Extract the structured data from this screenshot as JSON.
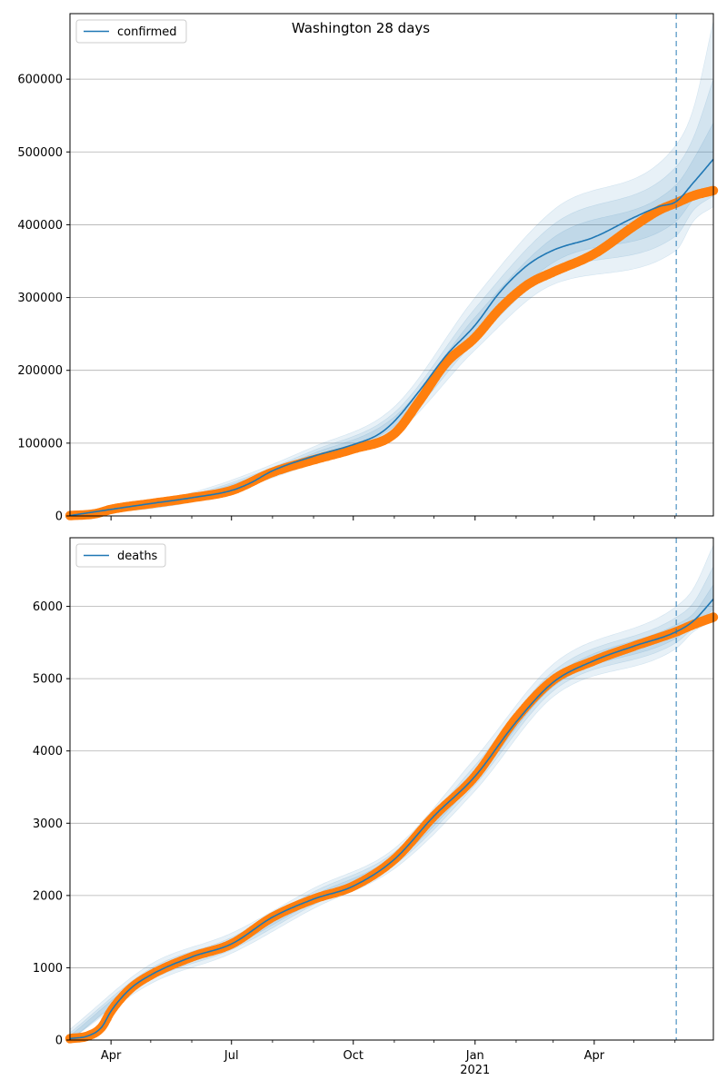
{
  "title": "Washington 28 days",
  "x_axis": {
    "start": "2020-03-01",
    "end": "2021-06-30",
    "major_ticks": [
      {
        "date": "2020-04-01",
        "label": "Apr"
      },
      {
        "date": "2020-07-01",
        "label": "Jul"
      },
      {
        "date": "2020-10-01",
        "label": "Oct"
      },
      {
        "date": "2021-01-01",
        "label": "Jan"
      },
      {
        "date": "2021-04-01",
        "label": "Apr"
      }
    ],
    "year_label": {
      "date": "2021-01-01",
      "label": "2021"
    },
    "minor_ticks": [
      "2020-05-01",
      "2020-06-01",
      "2020-08-01",
      "2020-09-01",
      "2020-11-01",
      "2020-12-01",
      "2021-02-01",
      "2021-03-01",
      "2021-05-01",
      "2021-06-01"
    ],
    "forecast_start": "2021-06-02"
  },
  "colors": {
    "model": "#1f77b4",
    "observed": "#ff7f0e",
    "band": "#1f77b4",
    "grid": "#b0b0b0",
    "forecast_line": "#1f77b4"
  },
  "chart_data": [
    {
      "type": "line",
      "legend": "confirmed",
      "legend_position": "top-left",
      "grid": "y",
      "ylim": [
        0,
        690000
      ],
      "yticks": [
        {
          "value": 0,
          "label": "0"
        },
        {
          "value": 100000,
          "label": "100000"
        },
        {
          "value": 200000,
          "label": "200000"
        },
        {
          "value": 300000,
          "label": "300000"
        },
        {
          "value": 400000,
          "label": "400000"
        },
        {
          "value": 500000,
          "label": "500000"
        },
        {
          "value": 600000,
          "label": "600000"
        }
      ],
      "model": [
        [
          "2020-03-01",
          500
        ],
        [
          "2020-04-01",
          9000
        ],
        [
          "2020-05-01",
          17000
        ],
        [
          "2020-06-01",
          25000
        ],
        [
          "2020-07-01",
          35000
        ],
        [
          "2020-07-15",
          45000
        ],
        [
          "2020-08-01",
          62000
        ],
        [
          "2020-09-01",
          82000
        ],
        [
          "2020-10-01",
          98000
        ],
        [
          "2020-10-20",
          112000
        ],
        [
          "2020-11-01",
          130000
        ],
        [
          "2020-11-20",
          172000
        ],
        [
          "2020-12-10",
          220000
        ],
        [
          "2021-01-01",
          262000
        ],
        [
          "2021-01-20",
          308000
        ],
        [
          "2021-02-10",
          345000
        ],
        [
          "2021-03-01",
          365000
        ],
        [
          "2021-04-01",
          383000
        ],
        [
          "2021-05-01",
          410000
        ],
        [
          "2021-05-20",
          425000
        ],
        [
          "2021-06-02",
          432000
        ],
        [
          "2021-06-15",
          458000
        ],
        [
          "2021-06-30",
          490000
        ]
      ],
      "observed": [
        [
          "2020-03-01",
          500
        ],
        [
          "2020-03-20",
          3000
        ],
        [
          "2020-04-01",
          9000
        ],
        [
          "2020-05-01",
          17000
        ],
        [
          "2020-06-01",
          25000
        ],
        [
          "2020-07-01",
          35000
        ],
        [
          "2020-08-01",
          60000
        ],
        [
          "2020-09-01",
          77000
        ],
        [
          "2020-10-01",
          92000
        ],
        [
          "2020-11-01",
          113000
        ],
        [
          "2020-11-20",
          158000
        ],
        [
          "2020-12-10",
          210000
        ],
        [
          "2021-01-01",
          245000
        ],
        [
          "2021-01-20",
          285000
        ],
        [
          "2021-02-10",
          318000
        ],
        [
          "2021-03-01",
          335000
        ],
        [
          "2021-04-01",
          360000
        ],
        [
          "2021-05-01",
          398000
        ],
        [
          "2021-05-20",
          420000
        ],
        [
          "2021-06-02",
          430000
        ],
        [
          "2021-06-15",
          440000
        ],
        [
          "2021-06-30",
          447000
        ]
      ],
      "bands": [
        {
          "lower": [
            [
              "2020-03-01",
              0
            ],
            [
              "2020-06-01",
              19000
            ],
            [
              "2020-09-01",
              72000
            ],
            [
              "2020-11-01",
              112000
            ],
            [
              "2021-01-01",
              228000
            ],
            [
              "2021-03-01",
              318000
            ],
            [
              "2021-06-02",
              365000
            ],
            [
              "2021-06-15",
              405000
            ],
            [
              "2021-06-30",
              425000
            ]
          ],
          "upper": [
            [
              "2020-03-01",
              4000
            ],
            [
              "2020-06-01",
              32000
            ],
            [
              "2020-09-01",
              95000
            ],
            [
              "2020-11-01",
              150000
            ],
            [
              "2021-01-01",
              300000
            ],
            [
              "2021-03-01",
              420000
            ],
            [
              "2021-06-02",
              510000
            ],
            [
              "2021-06-15",
              560000
            ],
            [
              "2021-06-30",
              680000
            ]
          ]
        },
        {
          "lower": [
            [
              "2020-03-01",
              0
            ],
            [
              "2020-06-01",
              21000
            ],
            [
              "2020-09-01",
              76000
            ],
            [
              "2020-11-01",
              118000
            ],
            [
              "2021-01-01",
              240000
            ],
            [
              "2021-03-01",
              335000
            ],
            [
              "2021-06-02",
              385000
            ],
            [
              "2021-06-15",
              420000
            ],
            [
              "2021-06-30",
              440000
            ]
          ],
          "upper": [
            [
              "2020-03-01",
              3000
            ],
            [
              "2020-06-01",
              29000
            ],
            [
              "2020-09-01",
              90000
            ],
            [
              "2020-11-01",
              142000
            ],
            [
              "2021-01-01",
              285000
            ],
            [
              "2021-03-01",
              400000
            ],
            [
              "2021-06-02",
              480000
            ],
            [
              "2021-06-15",
              520000
            ],
            [
              "2021-06-30",
              600000
            ]
          ]
        },
        {
          "lower": [
            [
              "2020-03-01",
              0
            ],
            [
              "2020-06-01",
              23000
            ],
            [
              "2020-09-01",
              79000
            ],
            [
              "2020-11-01",
              123000
            ],
            [
              "2021-01-01",
              250000
            ],
            [
              "2021-03-01",
              348000
            ],
            [
              "2021-06-02",
              405000
            ],
            [
              "2021-06-15",
              435000
            ],
            [
              "2021-06-30",
              455000
            ]
          ],
          "upper": [
            [
              "2020-03-01",
              2000
            ],
            [
              "2020-06-01",
              27000
            ],
            [
              "2020-09-01",
              86000
            ],
            [
              "2020-11-01",
              136000
            ],
            [
              "2021-01-01",
              273000
            ],
            [
              "2021-03-01",
              382000
            ],
            [
              "2021-06-02",
              455000
            ],
            [
              "2021-06-15",
              490000
            ],
            [
              "2021-06-30",
              540000
            ]
          ]
        }
      ]
    },
    {
      "type": "line",
      "legend": "deaths",
      "legend_position": "top-left",
      "grid": "y",
      "ylim": [
        0,
        6950
      ],
      "yticks": [
        {
          "value": 0,
          "label": "0"
        },
        {
          "value": 1000,
          "label": "1000"
        },
        {
          "value": 2000,
          "label": "2000"
        },
        {
          "value": 3000,
          "label": "3000"
        },
        {
          "value": 4000,
          "label": "4000"
        },
        {
          "value": 5000,
          "label": "5000"
        },
        {
          "value": 6000,
          "label": "6000"
        }
      ],
      "model": [
        [
          "2020-03-01",
          20
        ],
        [
          "2020-03-15",
          60
        ],
        [
          "2020-03-25",
          180
        ],
        [
          "2020-04-01",
          400
        ],
        [
          "2020-04-15",
          700
        ],
        [
          "2020-05-01",
          900
        ],
        [
          "2020-06-01",
          1150
        ],
        [
          "2020-07-01",
          1330
        ],
        [
          "2020-08-01",
          1700
        ],
        [
          "2020-09-01",
          1950
        ],
        [
          "2020-10-01",
          2130
        ],
        [
          "2020-11-01",
          2500
        ],
        [
          "2020-12-01",
          3100
        ],
        [
          "2021-01-01",
          3650
        ],
        [
          "2021-02-01",
          4400
        ],
        [
          "2021-03-01",
          4950
        ],
        [
          "2021-04-01",
          5250
        ],
        [
          "2021-05-01",
          5450
        ],
        [
          "2021-06-02",
          5650
        ],
        [
          "2021-06-15",
          5800
        ],
        [
          "2021-06-30",
          6100
        ]
      ],
      "observed": [
        [
          "2020-03-01",
          20
        ],
        [
          "2020-03-15",
          60
        ],
        [
          "2020-03-25",
          180
        ],
        [
          "2020-04-01",
          400
        ],
        [
          "2020-04-15",
          700
        ],
        [
          "2020-05-01",
          900
        ],
        [
          "2020-06-01",
          1150
        ],
        [
          "2020-07-01",
          1330
        ],
        [
          "2020-08-01",
          1700
        ],
        [
          "2020-09-01",
          1950
        ],
        [
          "2020-10-01",
          2130
        ],
        [
          "2020-11-01",
          2500
        ],
        [
          "2020-12-01",
          3100
        ],
        [
          "2021-01-01",
          3650
        ],
        [
          "2021-02-01",
          4450
        ],
        [
          "2021-03-01",
          4980
        ],
        [
          "2021-04-01",
          5250
        ],
        [
          "2021-05-01",
          5450
        ],
        [
          "2021-06-02",
          5650
        ],
        [
          "2021-06-15",
          5750
        ],
        [
          "2021-06-30",
          5850
        ]
      ],
      "bands": [
        {
          "lower": [
            [
              "2020-03-01",
              0
            ],
            [
              "2020-05-01",
              780
            ],
            [
              "2020-07-01",
              1200
            ],
            [
              "2020-09-01",
              1820
            ],
            [
              "2020-11-01",
              2370
            ],
            [
              "2021-01-01",
              3450
            ],
            [
              "2021-03-01",
              4750
            ],
            [
              "2021-06-02",
              5420
            ],
            [
              "2021-06-15",
              5650
            ],
            [
              "2021-06-30",
              5800
            ]
          ],
          "upper": [
            [
              "2020-03-01",
              150
            ],
            [
              "2020-05-01",
              1050
            ],
            [
              "2020-07-01",
              1480
            ],
            [
              "2020-09-01",
              2100
            ],
            [
              "2020-11-01",
              2650
            ],
            [
              "2021-01-01",
              3900
            ],
            [
              "2021-03-01",
              5200
            ],
            [
              "2021-06-02",
              6000
            ],
            [
              "2021-06-15",
              6250
            ],
            [
              "2021-06-30",
              6850
            ]
          ]
        },
        {
          "lower": [
            [
              "2020-03-01",
              0
            ],
            [
              "2020-05-01",
              830
            ],
            [
              "2020-07-01",
              1250
            ],
            [
              "2020-09-01",
              1870
            ],
            [
              "2020-11-01",
              2420
            ],
            [
              "2021-01-01",
              3530
            ],
            [
              "2021-03-01",
              4830
            ],
            [
              "2021-06-02",
              5500
            ],
            [
              "2021-06-15",
              5700
            ],
            [
              "2021-06-30",
              5880
            ]
          ],
          "upper": [
            [
              "2020-03-01",
              100
            ],
            [
              "2020-05-01",
              990
            ],
            [
              "2020-07-01",
              1420
            ],
            [
              "2020-09-01",
              2050
            ],
            [
              "2020-11-01",
              2600
            ],
            [
              "2021-01-01",
              3800
            ],
            [
              "2021-03-01",
              5100
            ],
            [
              "2021-06-02",
              5850
            ],
            [
              "2021-06-15",
              6050
            ],
            [
              "2021-06-30",
              6550
            ]
          ]
        },
        {
          "lower": [
            [
              "2020-03-01",
              0
            ],
            [
              "2020-05-01",
              860
            ],
            [
              "2020-07-01",
              1290
            ],
            [
              "2020-09-01",
              1910
            ],
            [
              "2020-11-01",
              2460
            ],
            [
              "2021-01-01",
              3590
            ],
            [
              "2021-03-01",
              4890
            ],
            [
              "2021-06-02",
              5560
            ],
            [
              "2021-06-15",
              5740
            ],
            [
              "2021-06-30",
              5960
            ]
          ],
          "upper": [
            [
              "2020-03-01",
              60
            ],
            [
              "2020-05-01",
              950
            ],
            [
              "2020-07-01",
              1370
            ],
            [
              "2020-09-01",
              2000
            ],
            [
              "2020-11-01",
              2550
            ],
            [
              "2021-01-01",
              3720
            ],
            [
              "2021-03-01",
              5020
            ],
            [
              "2021-06-02",
              5750
            ],
            [
              "2021-06-15",
              5900
            ],
            [
              "2021-06-30",
              6300
            ]
          ]
        }
      ]
    }
  ]
}
